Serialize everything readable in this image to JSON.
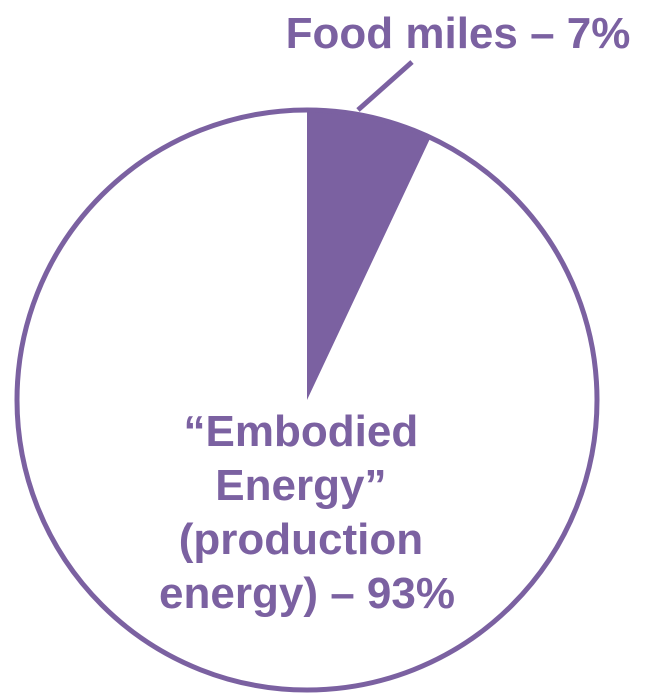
{
  "chart_data": {
    "type": "pie",
    "slices": [
      {
        "label_lines": [
          "Food miles – 7%"
        ],
        "value": 7,
        "color": "#7B61A1"
      },
      {
        "label_lines": [
          "“Embodied",
          "Energy”",
          "(production",
          "energy) – 93%"
        ],
        "value": 93,
        "color": "#FFFFFF"
      }
    ],
    "outline_color": "#7B61A1",
    "label_color": "#7B61A1",
    "start_angle": "12 o'clock",
    "direction": "clockwise",
    "legend": "none"
  }
}
